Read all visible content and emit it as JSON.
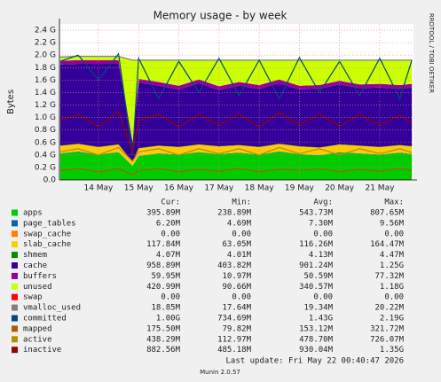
{
  "chart_data": {
    "type": "area",
    "title": "Memory usage - by week",
    "y_label": "Bytes",
    "watermark": "RRDTOOL / TOBI OETIKER",
    "legend_columns": [
      "Cur:",
      "Min:",
      "Avg:",
      "Max:"
    ],
    "last_update": "Last update: Fri May 22 00:40:47 2026",
    "credit": "Munin 2.0.57",
    "grid": true,
    "xlim": [
      13.03,
      21.84
    ],
    "xticks": [
      {
        "value": 14,
        "label": "14 May"
      },
      {
        "value": 15,
        "label": "15 May"
      },
      {
        "value": 16,
        "label": "16 May"
      },
      {
        "value": 17,
        "label": "17 May"
      },
      {
        "value": 18,
        "label": "18 May"
      },
      {
        "value": 19,
        "label": "19 May"
      },
      {
        "value": 20,
        "label": "20 May"
      },
      {
        "value": 21,
        "label": "21 May"
      }
    ],
    "ylim": [
      0,
      2.5
    ],
    "yticks": [
      {
        "value": 0,
        "label": "0.0"
      },
      {
        "value": 0.2,
        "label": "0.2 G"
      },
      {
        "value": 0.4,
        "label": "0.4 G"
      },
      {
        "value": 0.6,
        "label": "0.6 G"
      },
      {
        "value": 0.8,
        "label": "0.8 G"
      },
      {
        "value": 1.0,
        "label": "1.0 G"
      },
      {
        "value": 1.2,
        "label": "1.2 G"
      },
      {
        "value": 1.4,
        "label": "1.4 G"
      },
      {
        "value": 1.6,
        "label": "1.6 G"
      },
      {
        "value": 1.8,
        "label": "1.8 G"
      },
      {
        "value": 2.0,
        "label": "2.0 G"
      },
      {
        "value": 2.2,
        "label": "2.2 G"
      },
      {
        "value": 2.4,
        "label": "2.4 G"
      }
    ],
    "x": [
      13.05,
      13.5,
      14,
      14.5,
      14.85,
      15,
      15.5,
      16,
      16.5,
      17,
      17.5,
      18,
      18.5,
      19,
      19.5,
      20,
      20.5,
      21,
      21.5,
      21.8
    ],
    "series": [
      {
        "name": "apps",
        "color": "#00cc00",
        "style": "area",
        "stats": [
          "395.89M",
          "238.89M",
          "543.73M",
          "807.65M"
        ],
        "values": [
          0.42,
          0.45,
          0.4,
          0.44,
          0.22,
          0.38,
          0.42,
          0.4,
          0.44,
          0.41,
          0.43,
          0.4,
          0.45,
          0.41,
          0.39,
          0.44,
          0.42,
          0.4,
          0.43,
          0.41
        ]
      },
      {
        "name": "page_tables",
        "color": "#0066b3",
        "style": "area",
        "stats": [
          "6.20M",
          "4.69M",
          "7.30M",
          "9.56M"
        ],
        "values": [
          0.006,
          0.006,
          0.006,
          0.006,
          0.006,
          0.006,
          0.006,
          0.006,
          0.006,
          0.006,
          0.006,
          0.006,
          0.006,
          0.006,
          0.006,
          0.006,
          0.006,
          0.006,
          0.006,
          0.006
        ]
      },
      {
        "name": "swap_cache",
        "color": "#ff8000",
        "style": "area",
        "stats": [
          "0.00",
          "0.00",
          "0.00",
          "0.00"
        ],
        "values": [
          0,
          0,
          0,
          0,
          0,
          0,
          0,
          0,
          0,
          0,
          0,
          0,
          0,
          0,
          0,
          0,
          0,
          0,
          0,
          0
        ]
      },
      {
        "name": "slab_cache",
        "color": "#ffcc00",
        "style": "area",
        "stats": [
          "117.84M",
          "63.05M",
          "116.26M",
          "164.47M"
        ],
        "values": [
          0.12,
          0.12,
          0.12,
          0.12,
          0.06,
          0.12,
          0.12,
          0.12,
          0.12,
          0.12,
          0.12,
          0.12,
          0.12,
          0.12,
          0.12,
          0.12,
          0.12,
          0.12,
          0.12,
          0.12
        ]
      },
      {
        "name": "shmem",
        "color": "#008f00",
        "style": "area",
        "stats": [
          "4.07M",
          "4.01M",
          "4.13M",
          "4.47M"
        ],
        "values": [
          0.004,
          0.004,
          0.004,
          0.004,
          0.004,
          0.004,
          0.004,
          0.004,
          0.004,
          0.004,
          0.004,
          0.004,
          0.004,
          0.004,
          0.004,
          0.004,
          0.004,
          0.004,
          0.004,
          0.004
        ]
      },
      {
        "name": "cache",
        "color": "#330099",
        "style": "area",
        "stats": [
          "958.89M",
          "403.82M",
          "901.24M",
          "1.25G"
        ],
        "values": [
          1.3,
          1.28,
          1.33,
          1.29,
          0.3,
          1.05,
          0.96,
          0.92,
          0.98,
          0.9,
          0.95,
          0.93,
          0.97,
          0.91,
          0.94,
          0.96,
          0.92,
          0.95,
          0.9,
          0.94
        ]
      },
      {
        "name": "buffers",
        "color": "#990099",
        "style": "area",
        "stats": [
          "59.95M",
          "10.97M",
          "50.59M",
          "77.32M"
        ],
        "values": [
          0.06,
          0.06,
          0.06,
          0.06,
          0.02,
          0.06,
          0.06,
          0.06,
          0.06,
          0.06,
          0.06,
          0.06,
          0.06,
          0.06,
          0.06,
          0.06,
          0.06,
          0.06,
          0.06,
          0.06
        ]
      },
      {
        "name": "unused",
        "color": "#ccff00",
        "style": "area",
        "stats": [
          "420.99M",
          "90.66M",
          "340.57M",
          "1.18G"
        ],
        "values": [
          0.05,
          0.05,
          0.05,
          0.05,
          1.3,
          0.29,
          0.34,
          0.4,
          0.3,
          0.41,
          0.34,
          0.39,
          0.3,
          0.4,
          0.39,
          0.32,
          0.38,
          0.37,
          0.39,
          0.37
        ]
      },
      {
        "name": "swap",
        "color": "#ff0000",
        "style": "area",
        "stats": [
          "0.00",
          "0.00",
          "0.00",
          "0.00"
        ],
        "values": [
          0,
          0,
          0,
          0,
          0,
          0,
          0,
          0,
          0,
          0,
          0,
          0,
          0,
          0,
          0,
          0,
          0,
          0,
          0,
          0
        ]
      },
      {
        "name": "vmalloc_used",
        "color": "#808080",
        "style": "area",
        "stats": [
          "18.85M",
          "17.64M",
          "19.34M",
          "20.22M"
        ],
        "values": [
          0.019,
          0.019,
          0.019,
          0.019,
          0.019,
          0.019,
          0.019,
          0.019,
          0.019,
          0.019,
          0.019,
          0.019,
          0.019,
          0.019,
          0.019,
          0.019,
          0.019,
          0.019,
          0.019,
          0.019
        ]
      },
      {
        "name": "committed",
        "color": "#00487d",
        "style": "line",
        "stats": [
          "1.00G",
          "734.69M",
          "1.43G",
          "2.19G"
        ],
        "values": [
          1.9,
          2.0,
          1.6,
          2.02,
          0.4,
          1.95,
          1.3,
          1.9,
          1.4,
          1.95,
          1.35,
          1.92,
          1.3,
          1.96,
          1.4,
          1.9,
          1.35,
          1.95,
          1.3,
          1.92
        ]
      },
      {
        "name": "mapped",
        "color": "#b35a00",
        "style": "line",
        "stats": [
          "175.50M",
          "79.82M",
          "153.12M",
          "321.72M"
        ],
        "values": [
          0.15,
          0.18,
          0.13,
          0.18,
          0.08,
          0.15,
          0.18,
          0.13,
          0.17,
          0.14,
          0.18,
          0.13,
          0.17,
          0.15,
          0.18,
          0.13,
          0.17,
          0.14,
          0.18,
          0.15
        ]
      },
      {
        "name": "active",
        "color": "#b38f00",
        "style": "line",
        "stats": [
          "438.29M",
          "112.97M",
          "478.70M",
          "726.07M"
        ],
        "values": [
          0.45,
          0.5,
          0.4,
          0.52,
          0.3,
          0.45,
          0.5,
          0.4,
          0.5,
          0.42,
          0.5,
          0.4,
          0.52,
          0.42,
          0.5,
          0.4,
          0.5,
          0.42,
          0.5,
          0.44
        ]
      },
      {
        "name": "inactive",
        "color": "#990000",
        "style": "line",
        "stats": [
          "882.56M",
          "485.18M",
          "930.04M",
          "1.35G"
        ],
        "values": [
          0.95,
          1.05,
          0.85,
          1.1,
          0.45,
          0.95,
          1.05,
          0.85,
          1.05,
          0.88,
          1.05,
          0.85,
          1.08,
          0.88,
          1.05,
          0.86,
          1.05,
          0.88,
          1.04,
          0.9
        ]
      }
    ]
  }
}
